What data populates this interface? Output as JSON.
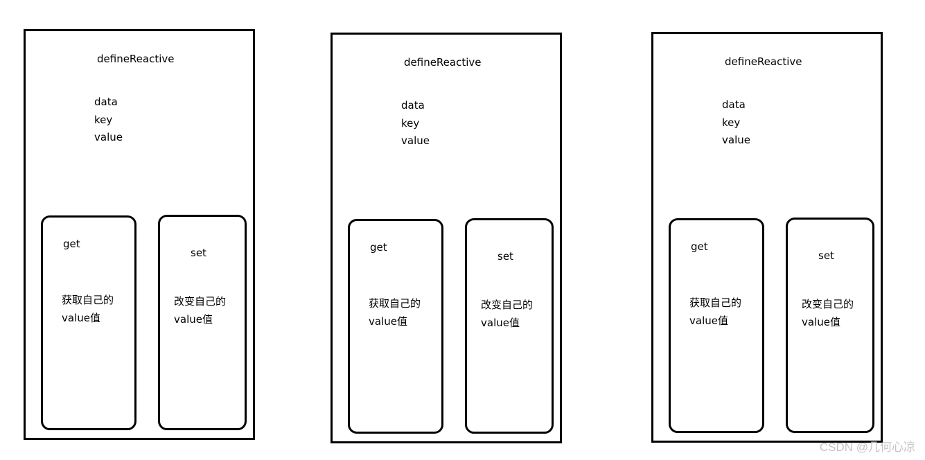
{
  "panels": [
    {
      "title": "defineReactive",
      "params": [
        "data",
        "key",
        "value"
      ],
      "get": {
        "label": "get",
        "desc_line1": "获取自己的",
        "desc_line2": "value值"
      },
      "set": {
        "label": "set",
        "desc_line1": "改变自己的",
        "desc_line2": "value值"
      }
    },
    {
      "title": "defineReactive",
      "params": [
        "data",
        "key",
        "value"
      ],
      "get": {
        "label": "get",
        "desc_line1": "获取自己的",
        "desc_line2": "value值"
      },
      "set": {
        "label": "set",
        "desc_line1": "改变自己的",
        "desc_line2": "value值"
      }
    },
    {
      "title": "defineReactive",
      "params": [
        "data",
        "key",
        "value"
      ],
      "get": {
        "label": "get",
        "desc_line1": "获取自己的",
        "desc_line2": "value值"
      },
      "set": {
        "label": "set",
        "desc_line1": "改变自己的",
        "desc_line2": "value值"
      }
    }
  ],
  "watermark": "CSDN @几何心凉",
  "colors": {
    "stroke": "#000000",
    "background": "#ffffff",
    "watermark": "#c4c4c4"
  }
}
